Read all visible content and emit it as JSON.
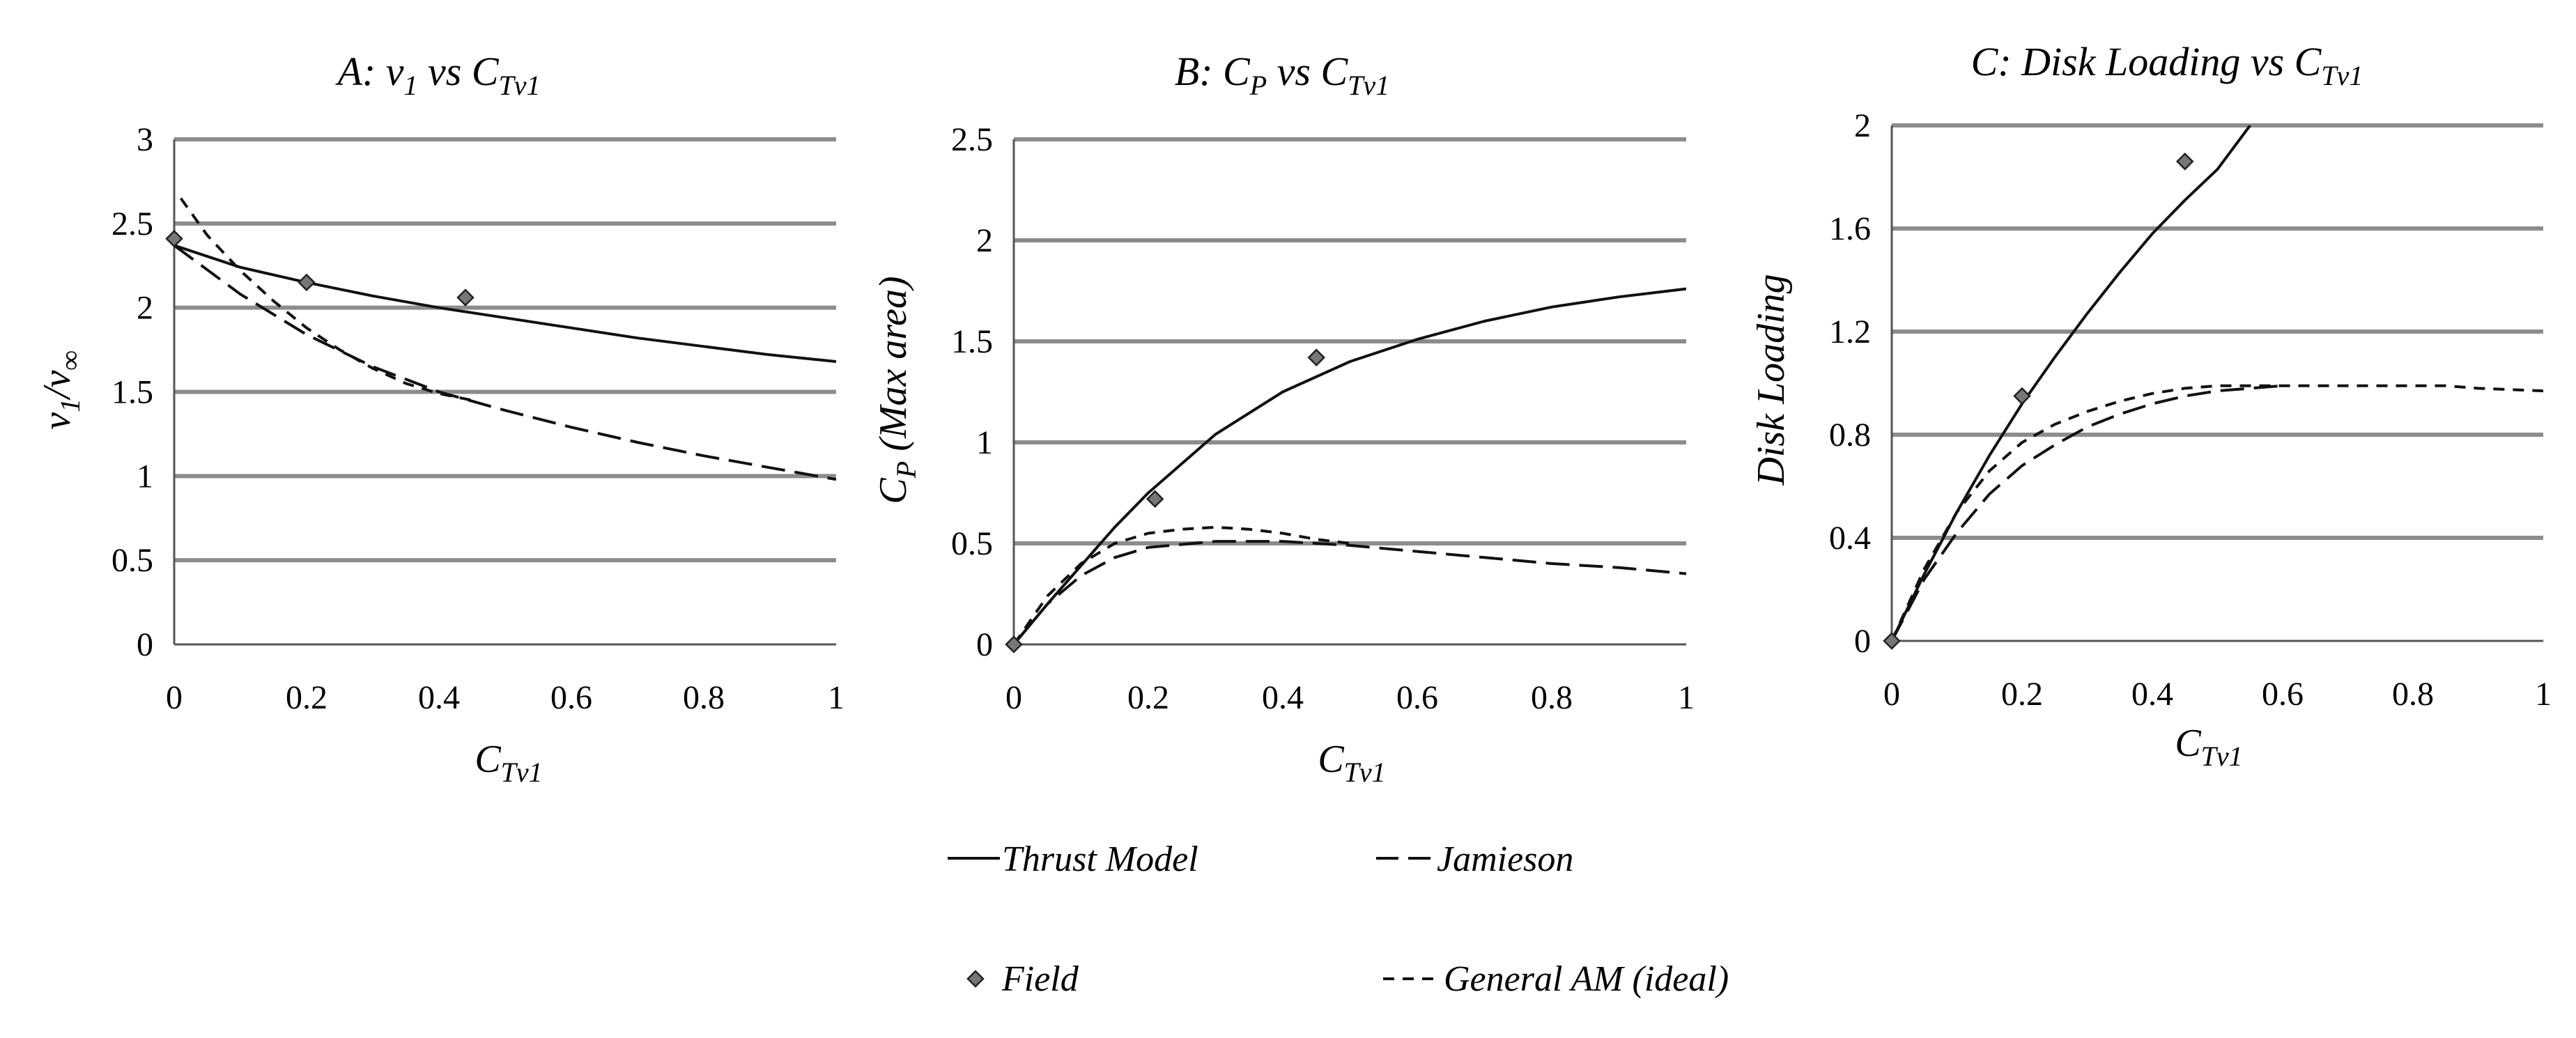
{
  "colors": {
    "grid": "#8c8c8c",
    "axis": "#555555",
    "line": "#111111",
    "marker_fill": "#777777"
  },
  "legend": {
    "thrust_model": "Thrust Model",
    "jamieson": "Jamieson",
    "field": "Field",
    "general_am": "General AM (ideal)"
  },
  "chart_data": [
    {
      "type": "line",
      "title": {
        "prefix": "A: ",
        "main": "v",
        "main_sub": "1",
        "vs": " vs ",
        "c": "C",
        "c_sub": "Tv1"
      },
      "xlabel": {
        "main": "C",
        "sub": "Tv1"
      },
      "ylabel": {
        "main": "v",
        "sub1": "1",
        "slash": "/v",
        "sub2": "∞"
      },
      "xlim": [
        0,
        1
      ],
      "ylim": [
        0,
        3
      ],
      "xticks": [
        "0",
        "0.2",
        "0.4",
        "0.6",
        "0.8",
        "1"
      ],
      "yticks": [
        "0",
        "0.5",
        "1",
        "1.5",
        "2",
        "2.5",
        "3"
      ],
      "ytick_values": [
        0,
        0.5,
        1,
        1.5,
        2,
        2.5,
        3
      ],
      "series": [
        {
          "name": "Thrust Model",
          "style": "solid",
          "x": [
            0,
            0.1,
            0.2,
            0.3,
            0.4,
            0.5,
            0.6,
            0.7,
            0.8,
            0.9,
            1.0
          ],
          "y": [
            2.37,
            2.24,
            2.15,
            2.07,
            2.0,
            1.94,
            1.88,
            1.82,
            1.77,
            1.72,
            1.68
          ]
        },
        {
          "name": "Jamieson",
          "style": "longdash",
          "x": [
            0,
            0.1,
            0.2,
            0.3,
            0.4,
            0.5,
            0.6,
            0.7,
            0.8,
            0.9,
            1.0
          ],
          "y": [
            2.37,
            2.08,
            1.84,
            1.65,
            1.5,
            1.39,
            1.29,
            1.2,
            1.12,
            1.05,
            0.98
          ]
        },
        {
          "name": "General AM (ideal)",
          "style": "shortdash",
          "x": [
            0.01,
            0.05,
            0.1,
            0.15,
            0.2,
            0.25,
            0.3,
            0.35,
            0.4,
            0.45
          ],
          "y": [
            2.65,
            2.43,
            2.22,
            2.04,
            1.88,
            1.75,
            1.64,
            1.55,
            1.49,
            1.45
          ]
        },
        {
          "name": "Field",
          "style": "marker",
          "x": [
            0,
            0.2,
            0.44
          ],
          "y": [
            2.41,
            2.15,
            2.06
          ]
        }
      ]
    },
    {
      "type": "line",
      "title": {
        "prefix": "B: ",
        "main": "C",
        "main_sub": "P",
        "vs": " vs ",
        "c": "C",
        "c_sub": "Tv1"
      },
      "xlabel": {
        "main": "C",
        "sub": "Tv1"
      },
      "ylabel": {
        "main": "C",
        "sub1": "P",
        "rest": " (Max area)"
      },
      "xlim": [
        0,
        1
      ],
      "ylim": [
        0,
        2.5
      ],
      "xticks": [
        "0",
        "0.2",
        "0.4",
        "0.6",
        "0.8",
        "1"
      ],
      "yticks": [
        "0",
        "0.5",
        "1",
        "1.5",
        "2",
        "2.5"
      ],
      "ytick_values": [
        0,
        0.5,
        1,
        1.5,
        2,
        2.5
      ],
      "series": [
        {
          "name": "Thrust Model",
          "style": "solid",
          "x": [
            0,
            0.05,
            0.1,
            0.15,
            0.2,
            0.3,
            0.4,
            0.5,
            0.6,
            0.7,
            0.8,
            0.9,
            1.0
          ],
          "y": [
            0,
            0.2,
            0.39,
            0.58,
            0.75,
            1.04,
            1.25,
            1.4,
            1.51,
            1.6,
            1.67,
            1.72,
            1.76
          ]
        },
        {
          "name": "Jamieson",
          "style": "longdash",
          "x": [
            0,
            0.05,
            0.1,
            0.15,
            0.2,
            0.3,
            0.4,
            0.5,
            0.6,
            0.7,
            0.8,
            0.9,
            1.0
          ],
          "y": [
            0,
            0.2,
            0.34,
            0.43,
            0.48,
            0.51,
            0.51,
            0.49,
            0.46,
            0.43,
            0.4,
            0.38,
            0.35
          ]
        },
        {
          "name": "General AM (ideal)",
          "style": "shortdash",
          "x": [
            0,
            0.05,
            0.1,
            0.15,
            0.2,
            0.25,
            0.3,
            0.35,
            0.4,
            0.45,
            0.5
          ],
          "y": [
            0,
            0.24,
            0.4,
            0.5,
            0.55,
            0.57,
            0.58,
            0.57,
            0.55,
            0.52,
            0.5
          ]
        },
        {
          "name": "Field",
          "style": "marker",
          "x": [
            0,
            0.21,
            0.45
          ],
          "y": [
            0,
            0.72,
            1.42
          ]
        }
      ]
    },
    {
      "type": "line",
      "title": {
        "prefix": "C: ",
        "main": "Disk Loading",
        "main_sub": "",
        "vs": " vs ",
        "c": "C",
        "c_sub": "Tv1"
      },
      "xlabel": {
        "main": "C",
        "sub": "Tv1"
      },
      "ylabel": {
        "main": "Disk Loading"
      },
      "xlim": [
        0,
        1
      ],
      "ylim": [
        0,
        2
      ],
      "xticks": [
        "0",
        "0.2",
        "0.4",
        "0.6",
        "0.8",
        "1"
      ],
      "yticks": [
        "0",
        "0.4",
        "0.8",
        "1.2",
        "1.6",
        "2"
      ],
      "ytick_values": [
        0,
        0.4,
        0.8,
        1.2,
        1.6,
        2
      ],
      "series": [
        {
          "name": "Thrust Model",
          "style": "solid",
          "x": [
            0,
            0.05,
            0.1,
            0.15,
            0.2,
            0.25,
            0.3,
            0.35,
            0.4,
            0.45,
            0.5,
            0.55
          ],
          "y": [
            0,
            0.26,
            0.5,
            0.72,
            0.92,
            1.1,
            1.27,
            1.43,
            1.58,
            1.71,
            1.83,
            2.0
          ]
        },
        {
          "name": "Jamieson",
          "style": "longdash",
          "x": [
            0,
            0.05,
            0.1,
            0.15,
            0.2,
            0.25,
            0.3,
            0.35,
            0.4,
            0.45,
            0.5,
            0.55,
            0.6
          ],
          "y": [
            0,
            0.24,
            0.42,
            0.57,
            0.68,
            0.76,
            0.83,
            0.88,
            0.92,
            0.95,
            0.97,
            0.98,
            0.99
          ]
        },
        {
          "name": "General AM (ideal)",
          "style": "shortdash",
          "x": [
            0,
            0.05,
            0.1,
            0.15,
            0.2,
            0.25,
            0.3,
            0.35,
            0.4,
            0.45,
            0.5,
            0.6,
            0.7,
            0.8,
            0.85,
            0.9,
            1.0
          ],
          "y": [
            0,
            0.28,
            0.5,
            0.66,
            0.77,
            0.84,
            0.89,
            0.93,
            0.96,
            0.98,
            0.99,
            0.99,
            0.99,
            0.99,
            0.99,
            0.98,
            0.97
          ]
        },
        {
          "name": "Field",
          "style": "marker",
          "x": [
            0,
            0.2,
            0.45
          ],
          "y": [
            0,
            0.95,
            1.86
          ]
        }
      ]
    }
  ]
}
